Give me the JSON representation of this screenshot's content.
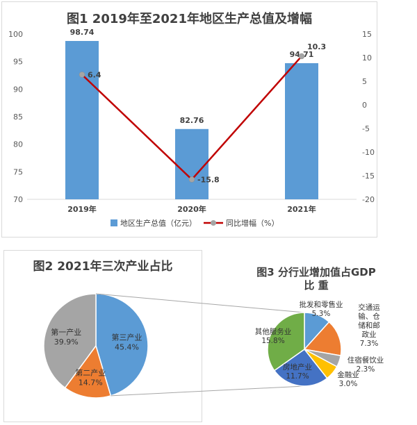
{
  "chart_data": [
    {
      "type": "bar",
      "title": "图1 2019年至2021年地区生产总值及增幅",
      "categories": [
        "2019年",
        "2020年",
        "2021年"
      ],
      "series": [
        {
          "name": "地区生产总值（亿元）",
          "type": "bar",
          "axis": "left",
          "color": "#5b9bd5",
          "values": [
            98.74,
            82.76,
            94.71
          ],
          "labels": [
            "98.74",
            "82.76",
            "94.71"
          ]
        },
        {
          "name": "同比增幅（%）",
          "type": "line",
          "axis": "right",
          "color": "#c00000",
          "marker_color": "#a5a5a5",
          "values": [
            6.4,
            -15.8,
            10.3
          ],
          "labels": [
            "6.4",
            "-15.8",
            "10.3"
          ]
        }
      ],
      "ylim": [
        70,
        100
      ],
      "yticks": [
        "70",
        "75",
        "80",
        "85",
        "90",
        "95",
        "100"
      ],
      "y2lim": [
        -20,
        15
      ],
      "y2ticks": [
        "-20",
        "-15",
        "-10",
        "-5",
        "0",
        "5",
        "10",
        "15"
      ],
      "legend": "bottom",
      "grid": false
    },
    {
      "type": "pie",
      "title": "图2 2021年三次产业占比",
      "slices": [
        {
          "label": "第三产业",
          "percent_label": "45.4%",
          "value": 45.4,
          "color": "#5b9bd5"
        },
        {
          "label": "第二产业",
          "percent_label": "14.7%",
          "value": 14.7,
          "color": "#ed7d31"
        },
        {
          "label": "第一产业",
          "percent_label": "39.9%",
          "value": 39.9,
          "color": "#a5a5a5"
        }
      ]
    },
    {
      "type": "pie",
      "title_line1": "图3 分行业增加值占GDP",
      "title_line2": "比 重",
      "slices": [
        {
          "label": "批发和零售业",
          "percent_label": "5.3%",
          "value": 5.3,
          "color": "#5b9bd5"
        },
        {
          "label": "交通运输、仓储和邮政业",
          "label_lines": [
            "交通运",
            "输、仓",
            "储和邮",
            "政业"
          ],
          "percent_label": "7.3%",
          "value": 7.3,
          "color": "#ed7d31"
        },
        {
          "label": "住宿餐饮业",
          "percent_label": "2.3%",
          "value": 2.3,
          "color": "#a5a5a5"
        },
        {
          "label": "金融业",
          "percent_label": "3.0%",
          "value": 3.0,
          "color": "#ffc000"
        },
        {
          "label": "房地产业",
          "percent_label": "11.7%",
          "value": 11.7,
          "color": "#4472c4"
        },
        {
          "label": "其他服务业",
          "percent_label": "15.8%",
          "value": 15.8,
          "color": "#70ad47"
        }
      ]
    }
  ]
}
